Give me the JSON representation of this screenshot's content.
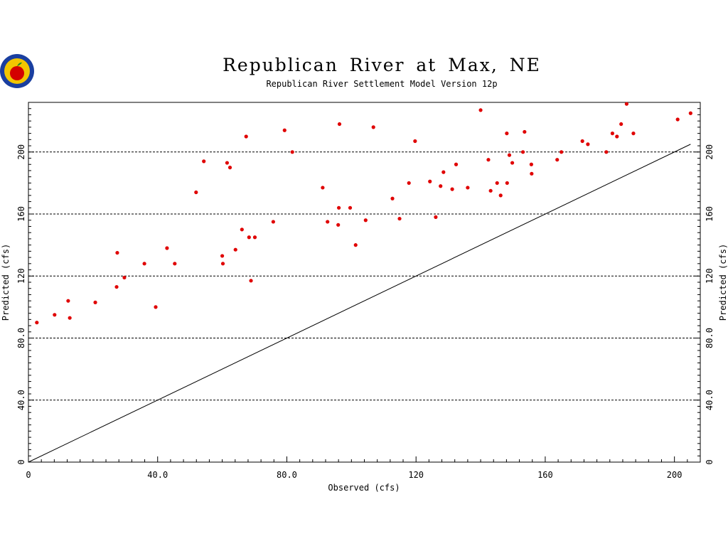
{
  "colors": {
    "points": "#e00000",
    "line": "#000000",
    "grid": "#000000",
    "background": "#ffffff",
    "logo_ring": "#1a3fa0",
    "logo_fill": "#f2c600",
    "logo_apple": "#d40000"
  },
  "logo": {
    "icon": "apple-seal-logo"
  },
  "chart_data": {
    "type": "scatter",
    "title": "Republican River at Max, NE",
    "subtitle": "Republican River Settlement Model Version 12p",
    "xlabel": "Observed (cfs)",
    "ylabel": "Predicted (cfs)",
    "ylabel_right": "Predicted (cfs)",
    "xlim": [
      0,
      208
    ],
    "ylim": [
      0,
      232
    ],
    "x_ticks": [
      0,
      40,
      80,
      120,
      160,
      200
    ],
    "x_tick_labels": [
      "0",
      "40.0",
      "80.0",
      "120",
      "160",
      "200"
    ],
    "y_ticks": [
      0,
      40,
      80,
      120,
      160,
      200
    ],
    "y_tick_labels": [
      "0",
      "40.0",
      "80.0",
      "120",
      "160",
      "200"
    ],
    "grid_y": true,
    "reference_line": {
      "from": [
        0,
        0
      ],
      "to": [
        205,
        205
      ]
    },
    "points": [
      {
        "x": 2.6,
        "y": 90
      },
      {
        "x": 8.1,
        "y": 95
      },
      {
        "x": 12.3,
        "y": 104
      },
      {
        "x": 12.8,
        "y": 93
      },
      {
        "x": 20.7,
        "y": 103
      },
      {
        "x": 27.3,
        "y": 113
      },
      {
        "x": 27.5,
        "y": 135
      },
      {
        "x": 29.7,
        "y": 119
      },
      {
        "x": 35.9,
        "y": 128
      },
      {
        "x": 39.4,
        "y": 100
      },
      {
        "x": 42.9,
        "y": 138
      },
      {
        "x": 45.3,
        "y": 128
      },
      {
        "x": 51.9,
        "y": 174
      },
      {
        "x": 54.3,
        "y": 194
      },
      {
        "x": 60.0,
        "y": 133
      },
      {
        "x": 60.2,
        "y": 128
      },
      {
        "x": 61.5,
        "y": 193
      },
      {
        "x": 62.4,
        "y": 190
      },
      {
        "x": 64.1,
        "y": 137
      },
      {
        "x": 66.1,
        "y": 150
      },
      {
        "x": 67.4,
        "y": 210
      },
      {
        "x": 68.3,
        "y": 145
      },
      {
        "x": 68.9,
        "y": 117
      },
      {
        "x": 70.1,
        "y": 145
      },
      {
        "x": 75.8,
        "y": 155
      },
      {
        "x": 79.3,
        "y": 214
      },
      {
        "x": 81.7,
        "y": 200
      },
      {
        "x": 91.1,
        "y": 177
      },
      {
        "x": 92.6,
        "y": 155
      },
      {
        "x": 95.9,
        "y": 153
      },
      {
        "x": 96.1,
        "y": 164
      },
      {
        "x": 96.3,
        "y": 218
      },
      {
        "x": 99.6,
        "y": 164
      },
      {
        "x": 101.3,
        "y": 140
      },
      {
        "x": 104.4,
        "y": 156
      },
      {
        "x": 106.8,
        "y": 216
      },
      {
        "x": 112.7,
        "y": 170
      },
      {
        "x": 114.9,
        "y": 157
      },
      {
        "x": 117.8,
        "y": 180
      },
      {
        "x": 119.7,
        "y": 207
      },
      {
        "x": 124.3,
        "y": 181
      },
      {
        "x": 126.1,
        "y": 158
      },
      {
        "x": 127.6,
        "y": 178
      },
      {
        "x": 128.5,
        "y": 187
      },
      {
        "x": 131.2,
        "y": 176
      },
      {
        "x": 132.4,
        "y": 192
      },
      {
        "x": 136.0,
        "y": 177
      },
      {
        "x": 140.0,
        "y": 227
      },
      {
        "x": 142.4,
        "y": 195
      },
      {
        "x": 143.1,
        "y": 175
      },
      {
        "x": 145.1,
        "y": 180
      },
      {
        "x": 146.2,
        "y": 172
      },
      {
        "x": 148.1,
        "y": 212
      },
      {
        "x": 148.2,
        "y": 180
      },
      {
        "x": 148.9,
        "y": 198
      },
      {
        "x": 149.8,
        "y": 193
      },
      {
        "x": 153.1,
        "y": 200
      },
      {
        "x": 153.6,
        "y": 213
      },
      {
        "x": 155.7,
        "y": 192
      },
      {
        "x": 155.8,
        "y": 186
      },
      {
        "x": 163.7,
        "y": 195
      },
      {
        "x": 165.0,
        "y": 200
      },
      {
        "x": 171.5,
        "y": 207
      },
      {
        "x": 173.2,
        "y": 205
      },
      {
        "x": 178.9,
        "y": 200
      },
      {
        "x": 180.8,
        "y": 212
      },
      {
        "x": 182.2,
        "y": 210
      },
      {
        "x": 183.5,
        "y": 218
      },
      {
        "x": 185.2,
        "y": 231
      },
      {
        "x": 187.3,
        "y": 212
      },
      {
        "x": 201.0,
        "y": 221
      },
      {
        "x": 205.0,
        "y": 225
      }
    ]
  }
}
